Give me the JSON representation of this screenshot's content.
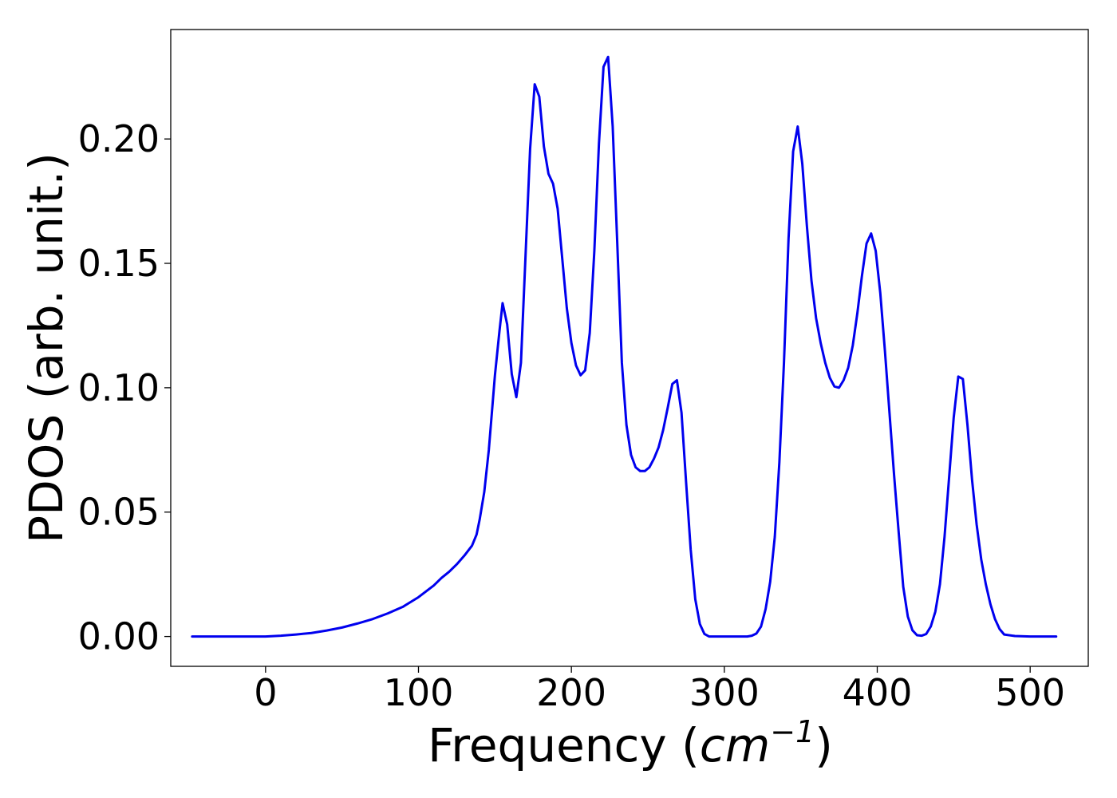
{
  "chart_data": {
    "type": "line",
    "title": "",
    "xlabel": "Frequency",
    "xlabel_unit_base": "cm",
    "xlabel_unit_exp": "−1",
    "ylabel": "PDOS (arb. unit.)",
    "xlim": [
      -62,
      538
    ],
    "ylim": [
      -0.012,
      0.244
    ],
    "xticks": [
      0,
      100,
      200,
      300,
      400,
      500
    ],
    "xtick_labels": [
      "0",
      "100",
      "200",
      "300",
      "400",
      "500"
    ],
    "yticks": [
      0.0,
      0.05,
      0.1,
      0.15,
      0.2
    ],
    "ytick_labels": [
      "0.00",
      "0.05",
      "0.10",
      "0.15",
      "0.20"
    ],
    "grid": false,
    "legend": "none",
    "colors": {
      "line": "#0000ee",
      "frame": "#000000"
    },
    "series": [
      {
        "x": [
          -48,
          -20,
          0,
          10,
          20,
          30,
          40,
          50,
          60,
          70,
          80,
          90,
          100,
          110,
          115,
          120,
          125,
          130,
          135,
          138,
          140,
          143,
          146,
          150,
          153,
          155,
          158,
          161,
          164,
          167,
          170,
          173,
          176,
          179,
          182,
          185,
          188,
          191,
          194,
          197,
          200,
          203,
          206,
          209,
          212,
          215,
          218,
          221,
          224,
          227,
          230,
          233,
          236,
          239,
          242,
          245,
          248,
          251,
          254,
          257,
          260,
          263,
          266,
          269,
          272,
          275,
          278,
          281,
          284,
          287,
          290,
          300,
          310,
          315,
          318,
          321,
          324,
          327,
          330,
          333,
          336,
          339,
          342,
          345,
          348,
          351,
          354,
          357,
          360,
          363,
          366,
          369,
          372,
          375,
          378,
          381,
          384,
          387,
          390,
          393,
          396,
          399,
          402,
          405,
          408,
          411,
          414,
          417,
          420,
          423,
          426,
          429,
          432,
          435,
          438,
          441,
          444,
          447,
          450,
          453,
          456,
          459,
          462,
          465,
          468,
          471,
          474,
          477,
          480,
          483,
          490,
          500,
          517
        ],
        "y": [
          0.0,
          0.0,
          0.0,
          0.0003,
          0.0008,
          0.0014,
          0.0024,
          0.0036,
          0.0052,
          0.007,
          0.0093,
          0.012,
          0.0158,
          0.0205,
          0.0235,
          0.026,
          0.029,
          0.0325,
          0.0365,
          0.041,
          0.047,
          0.058,
          0.075,
          0.105,
          0.123,
          0.134,
          0.1255,
          0.1055,
          0.0962,
          0.11,
          0.153,
          0.196,
          0.222,
          0.217,
          0.197,
          0.186,
          0.182,
          0.172,
          0.152,
          0.132,
          0.118,
          0.109,
          0.105,
          0.107,
          0.122,
          0.155,
          0.198,
          0.229,
          0.233,
          0.205,
          0.158,
          0.11,
          0.085,
          0.073,
          0.068,
          0.0665,
          0.0665,
          0.068,
          0.0715,
          0.076,
          0.083,
          0.092,
          0.1015,
          0.103,
          0.09,
          0.062,
          0.035,
          0.015,
          0.005,
          0.001,
          0.0,
          0.0,
          0.0,
          0.0,
          0.0003,
          0.0012,
          0.004,
          0.011,
          0.022,
          0.04,
          0.07,
          0.11,
          0.16,
          0.195,
          0.205,
          0.19,
          0.165,
          0.143,
          0.128,
          0.118,
          0.11,
          0.104,
          0.1005,
          0.1,
          0.103,
          0.108,
          0.117,
          0.13,
          0.145,
          0.158,
          0.162,
          0.155,
          0.138,
          0.115,
          0.09,
          0.065,
          0.042,
          0.02,
          0.008,
          0.0025,
          0.0005,
          0.0003,
          0.001,
          0.004,
          0.01,
          0.021,
          0.04,
          0.064,
          0.088,
          0.1045,
          0.1035,
          0.085,
          0.063,
          0.045,
          0.031,
          0.021,
          0.013,
          0.007,
          0.003,
          0.0008,
          0.0002,
          0.0,
          0.0
        ]
      }
    ]
  }
}
